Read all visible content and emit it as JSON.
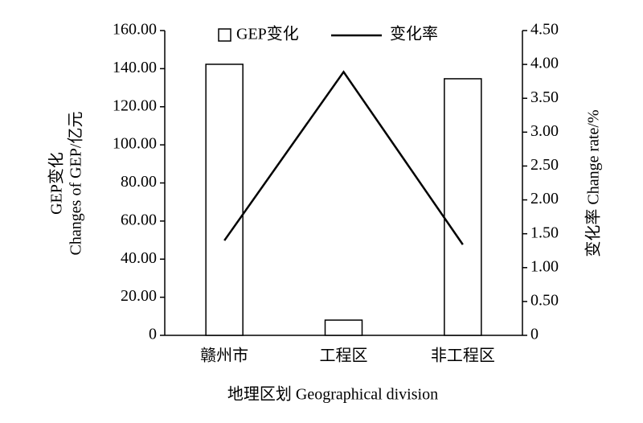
{
  "chart_data": {
    "type": "bar",
    "x_label": "地理区划 Geographical division",
    "y_label": [
      "GEP变化",
      "Changes of GEP/亿元"
    ],
    "y2_label": "变化率 Change rate/%",
    "categories": [
      "赣州市",
      "工程区",
      "非工程区"
    ],
    "series": [
      {
        "name": "GEP变化",
        "type": "bar",
        "color": "#ffffff",
        "values": [
          142.3,
          8.0,
          134.7
        ]
      },
      {
        "name": "变化率",
        "type": "line",
        "axis": "y2",
        "color": "#000000",
        "values": [
          1.4,
          3.89,
          1.34
        ]
      }
    ],
    "ylim": [
      0,
      160
    ],
    "yticks": [
      0,
      {
        "value": 20,
        "label": "20.00"
      },
      {
        "value": 40,
        "label": "40.00"
      },
      {
        "value": 60,
        "label": "60.00"
      },
      {
        "value": 80,
        "label": "80.00"
      },
      {
        "value": 100,
        "label": "100.00"
      },
      {
        "value": 120,
        "label": "120.00"
      },
      {
        "value": 140,
        "label": "140.00"
      },
      {
        "value": 160,
        "label": "160.00"
      }
    ],
    "y2lim": [
      0,
      4.5
    ],
    "y2ticks": [
      0,
      {
        "value": 0.5,
        "label": "0.50"
      },
      {
        "value": 1,
        "label": "1.00"
      },
      {
        "value": 1.5,
        "label": "1.50"
      },
      {
        "value": 2,
        "label": "2.00"
      },
      {
        "value": 2.5,
        "label": "2.50"
      },
      {
        "value": 3,
        "label": "3.00"
      },
      {
        "value": 3.5,
        "label": "3.50"
      },
      {
        "value": 4,
        "label": "4.00"
      },
      {
        "value": 4.5,
        "label": "4.50"
      }
    ],
    "grid": false
  }
}
